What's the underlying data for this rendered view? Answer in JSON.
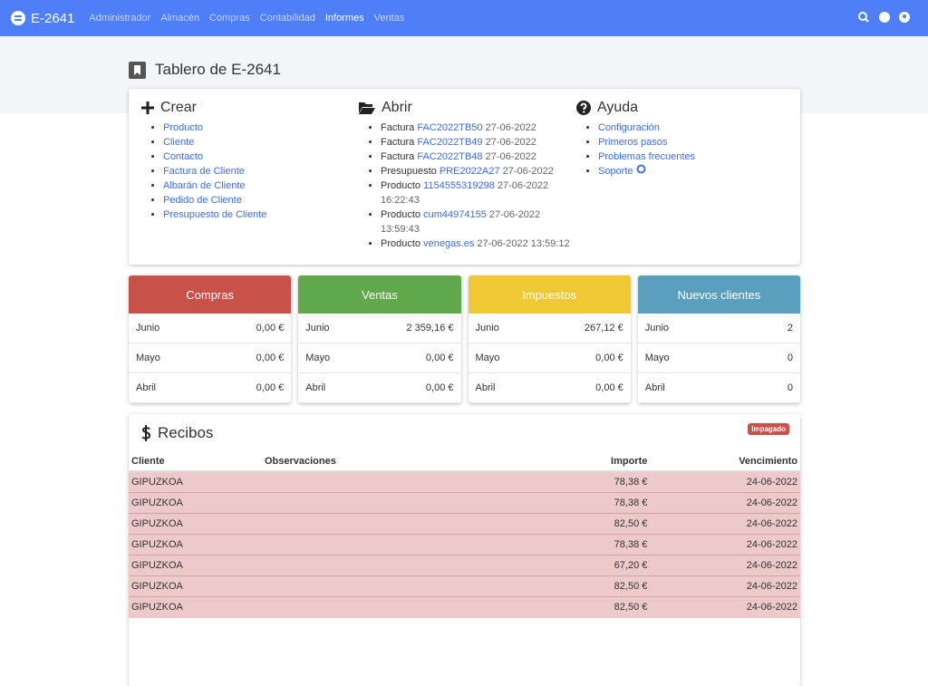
{
  "navbar": {
    "brand": "E-2641",
    "menu": [
      "Administrador",
      "Almacén",
      "Compras",
      "Contabilidad",
      "Informes",
      "Ventas"
    ],
    "active": 4
  },
  "page_title": "Tablero de E-2641",
  "create": {
    "title": "Crear",
    "links": [
      "Producto",
      "Cliente",
      "Contacto",
      "Factura de Cliente",
      "Albarán de Cliente",
      "Pedido de Cliente",
      "Presupuesto de Cliente"
    ]
  },
  "open": {
    "title": "Abrir",
    "items": [
      {
        "type": "Factura",
        "code": "FAC2022TB50",
        "date": "27-06-2022"
      },
      {
        "type": "Factura",
        "code": "FAC2022TB49",
        "date": "27-06-2022"
      },
      {
        "type": "Factura",
        "code": "FAC2022TB48",
        "date": "27-06-2022"
      },
      {
        "type": "Presupuesto",
        "code": "PRE2022A27",
        "date": "27-06-2022"
      },
      {
        "type": "Producto",
        "code": "1154555319298",
        "date": "27-06-2022 16:22:43"
      },
      {
        "type": "Producto",
        "code": "cum44974155",
        "date": "27-06-2022 13:59:43"
      },
      {
        "type": "Producto",
        "code": "venegas.es",
        "date": "27-06-2022 13:59:12"
      }
    ]
  },
  "help": {
    "title": "Ayuda",
    "links": [
      "Configuración",
      "Primeros pasos",
      "Problemas frecuentes",
      "Soporte"
    ]
  },
  "stats": [
    {
      "title": "Compras",
      "color": "#c8524a",
      "rows": [
        [
          "Junio",
          "0,00 €"
        ],
        [
          "Mayo",
          "0,00 €"
        ],
        [
          "Abril",
          "0,00 €"
        ]
      ]
    },
    {
      "title": "Ventas",
      "color": "#5fa84b",
      "rows": [
        [
          "Junio",
          "2 359,16 €"
        ],
        [
          "Mayo",
          "0,00 €"
        ],
        [
          "Abril",
          "0,00 €"
        ]
      ]
    },
    {
      "title": "Impuestos",
      "color": "#eec934",
      "rows": [
        [
          "Junio",
          "267,12 €"
        ],
        [
          "Mayo",
          "0,00 €"
        ],
        [
          "Abril",
          "0,00 €"
        ]
      ]
    },
    {
      "title": "Nuevos clientes",
      "color": "#5b9fbf",
      "rows": [
        [
          "Junio",
          "2"
        ],
        [
          "Mayo",
          "0"
        ],
        [
          "Abril",
          "0"
        ]
      ]
    }
  ],
  "receipts": {
    "title": "Recibos",
    "badge": "Impagado",
    "columns": [
      "Cliente",
      "Observaciones",
      "Importe",
      "Vencimiento"
    ],
    "rows": [
      {
        "client": "GIPUZKOA",
        "amount": "78,38 €",
        "due": "24-06-2022"
      },
      {
        "client": "GIPUZKOA",
        "amount": "78,38 €",
        "due": "24-06-2022"
      },
      {
        "client": "GIPUZKOA",
        "amount": "82,50 €",
        "due": "24-06-2022"
      },
      {
        "client": "GIPUZKOA",
        "amount": "78,38 €",
        "due": "24-06-2022"
      },
      {
        "client": "GIPUZKOA",
        "amount": "67,20 €",
        "due": "24-06-2022"
      },
      {
        "client": "GIPUZKOA",
        "amount": "82,50 €",
        "due": "24-06-2022"
      },
      {
        "client": "GIPUZKOA",
        "amount": "82,50 €",
        "due": "24-06-2022"
      }
    ]
  }
}
